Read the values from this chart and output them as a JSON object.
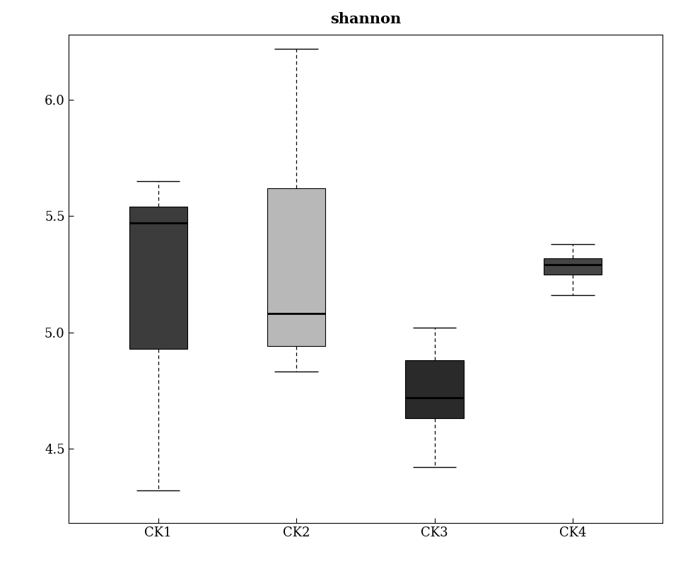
{
  "title": "shannon",
  "categories": [
    "CK1",
    "CK2",
    "CK3",
    "CK4"
  ],
  "box_data": {
    "CK1": {
      "whislo": 4.32,
      "q1": 4.93,
      "med": 5.47,
      "q3": 5.54,
      "whishi": 5.65,
      "color": "#3c3c3c"
    },
    "CK2": {
      "whislo": 4.83,
      "q1": 4.94,
      "med": 5.08,
      "q3": 5.62,
      "whishi": 6.22,
      "color": "#b8b8b8"
    },
    "CK3": {
      "whislo": 4.42,
      "q1": 4.63,
      "med": 4.72,
      "q3": 4.88,
      "whishi": 5.02,
      "color": "#2a2a2a"
    },
    "CK4": {
      "whislo": 5.16,
      "q1": 5.25,
      "med": 5.29,
      "q3": 5.32,
      "whishi": 5.38,
      "color": "#454545"
    }
  },
  "ylim": [
    4.18,
    6.28
  ],
  "yticks": [
    4.5,
    5.0,
    5.5,
    6.0
  ],
  "background_color": "#ffffff",
  "box_width": 0.42,
  "title_fontsize": 15,
  "tick_fontsize": 13,
  "whisker_linestyle": "dashed"
}
